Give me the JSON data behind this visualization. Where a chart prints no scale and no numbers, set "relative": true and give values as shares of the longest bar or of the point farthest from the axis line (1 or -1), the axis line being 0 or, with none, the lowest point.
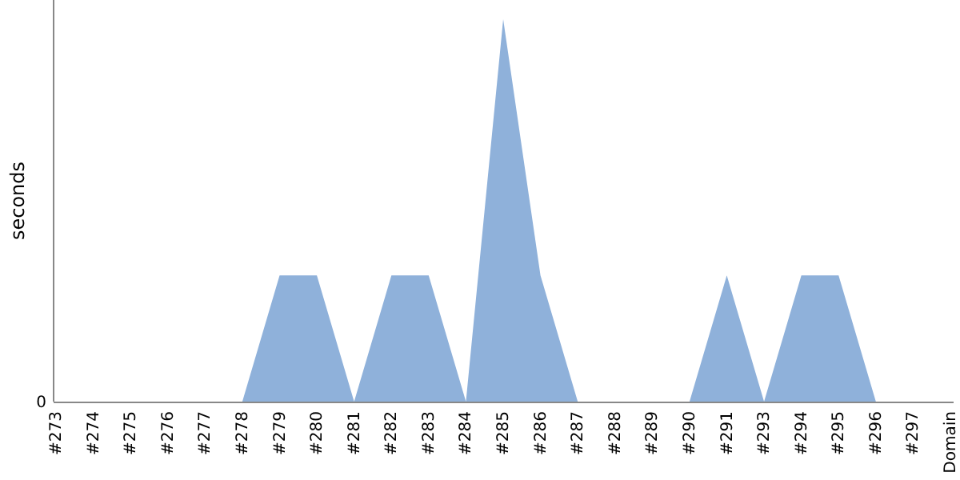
{
  "chart_data": {
    "type": "area",
    "ylabel": "seconds",
    "relative": true,
    "annotations": [
      "0"
    ],
    "categories": [
      "#273",
      "#274",
      "#275",
      "#276",
      "#277",
      "#278",
      "#279",
      "#280",
      "#281",
      "#282",
      "#283",
      "#284",
      "#285",
      "#286",
      "#287",
      "#288",
      "#289",
      "#290",
      "#291",
      "#293",
      "#294",
      "#295",
      "#296",
      "#297",
      "Domain"
    ],
    "series": [
      {
        "color": "#8fb1da",
        "values": [
          0,
          0,
          0,
          0,
          0,
          0,
          0.33,
          0.33,
          0,
          0.33,
          0.33,
          0,
          1,
          0.33,
          0,
          0,
          0,
          0,
          0.33,
          0,
          0.33,
          0.33,
          0,
          0,
          0
        ]
      }
    ]
  }
}
